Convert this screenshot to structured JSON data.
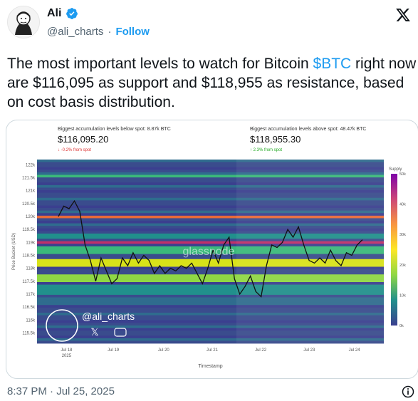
{
  "author": {
    "name": "Ali",
    "handle": "@ali_charts",
    "follow_label": "Follow"
  },
  "tweet": {
    "text_before": "The most important levels to watch for Bitcoin ",
    "cashtag": "$BTC",
    "text_after": " right now are $116,095 as support and $118,955 as resistance, based on cost basis distribution."
  },
  "timestamp": "8:37 PM · Jul 25, 2025",
  "icons": [
    "verified-badge-icon",
    "x-logo-icon",
    "info-icon",
    "x-icon",
    "youtube-icon"
  ],
  "colors": {
    "accent": "#1d9bf0",
    "muted": "#536471",
    "text": "#0f1419"
  },
  "chart_data": {
    "type": "heatmap",
    "subtitle_left": "Biggest accumulation levels below spot: 8.87k BTC",
    "value_left": "$116,095.20",
    "delta_left": "-0.2% from spot",
    "subtitle_right": "Biggest accumulation levels above spot: 48.47k BTC",
    "value_right": "$118,955.30",
    "delta_right": "2.3% from spot",
    "ylabel": "Price Bucket (USD)",
    "xlabel": "Timestamp",
    "yticks": [
      "122k",
      "121.5k",
      "121k",
      "120.5k",
      "120k",
      "119.5k",
      "119k",
      "118.5k",
      "118k",
      "117.5k",
      "117k",
      "116.5k",
      "116k",
      "115.5k"
    ],
    "xticks": [
      "Jul 18",
      "Jul 19",
      "Jul 20",
      "Jul 21",
      "Jul 22",
      "Jul 23",
      "Jul 24"
    ],
    "xtick_year": "2025",
    "colorbar_title": "Supply",
    "colorbar_ticks": [
      "50k",
      "40k",
      "30k",
      "20k",
      "10k",
      "0k"
    ],
    "watermark": "glassnode",
    "overlay_handle": "@ali_charts",
    "price_series": [
      [
        0.0,
        120.0
      ],
      [
        0.02,
        120.4
      ],
      [
        0.04,
        120.3
      ],
      [
        0.06,
        120.6
      ],
      [
        0.08,
        120.2
      ],
      [
        0.1,
        118.9
      ],
      [
        0.12,
        118.3
      ],
      [
        0.14,
        117.5
      ],
      [
        0.16,
        118.4
      ],
      [
        0.18,
        117.9
      ],
      [
        0.2,
        117.4
      ],
      [
        0.22,
        117.6
      ],
      [
        0.24,
        118.4
      ],
      [
        0.26,
        118.1
      ],
      [
        0.28,
        118.6
      ],
      [
        0.3,
        118.2
      ],
      [
        0.32,
        118.5
      ],
      [
        0.34,
        118.3
      ],
      [
        0.36,
        117.8
      ],
      [
        0.38,
        118.1
      ],
      [
        0.4,
        117.8
      ],
      [
        0.42,
        118.0
      ],
      [
        0.44,
        117.9
      ],
      [
        0.46,
        118.1
      ],
      [
        0.48,
        118.0
      ],
      [
        0.5,
        118.2
      ],
      [
        0.52,
        117.8
      ],
      [
        0.54,
        117.4
      ],
      [
        0.56,
        118.0
      ],
      [
        0.58,
        118.7
      ],
      [
        0.6,
        118.2
      ],
      [
        0.62,
        118.9
      ],
      [
        0.64,
        119.2
      ],
      [
        0.66,
        117.6
      ],
      [
        0.68,
        117.0
      ],
      [
        0.7,
        117.3
      ],
      [
        0.72,
        117.7
      ],
      [
        0.74,
        117.1
      ],
      [
        0.76,
        116.9
      ],
      [
        0.78,
        118.1
      ],
      [
        0.8,
        118.9
      ],
      [
        0.82,
        118.8
      ],
      [
        0.84,
        119.0
      ],
      [
        0.86,
        119.5
      ],
      [
        0.88,
        119.2
      ],
      [
        0.9,
        119.6
      ],
      [
        0.92,
        118.9
      ],
      [
        0.94,
        118.3
      ],
      [
        0.96,
        118.2
      ],
      [
        0.98,
        118.4
      ],
      [
        1.0,
        118.2
      ],
      [
        1.02,
        118.7
      ],
      [
        1.04,
        118.3
      ],
      [
        1.06,
        118.1
      ],
      [
        1.08,
        118.6
      ],
      [
        1.1,
        118.5
      ],
      [
        1.12,
        118.9
      ],
      [
        1.14,
        119.1
      ]
    ]
  }
}
